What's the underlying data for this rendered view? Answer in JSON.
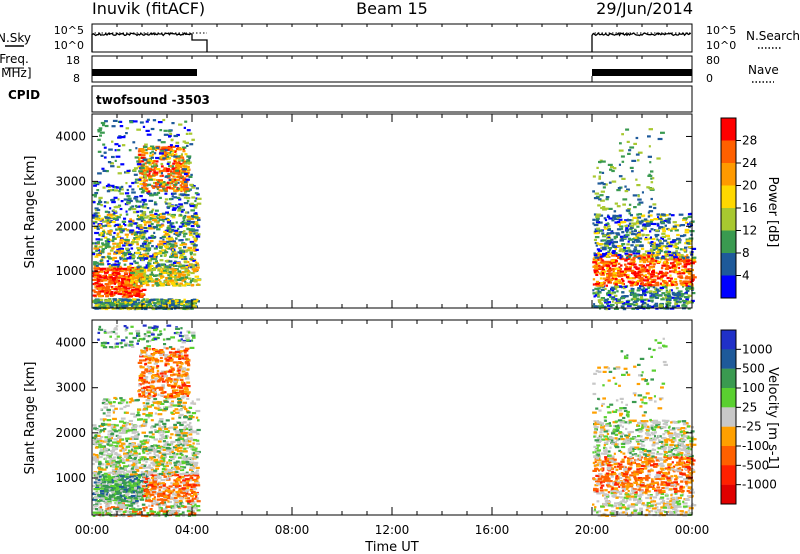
{
  "header": {
    "station": "Inuvik (fitACF)",
    "beam": "Beam 15",
    "date": "29/Jun/2014"
  },
  "panels": {
    "nsky": {
      "label": "N.Sky",
      "right_label": "N.Search",
      "ticks_left": [
        "10^5",
        "10^0"
      ],
      "ticks_right": [
        "10^5",
        "10^0"
      ]
    },
    "freq": {
      "label_line1": "Freq.",
      "label_line2": "[MHz]",
      "right_label": "Nave",
      "ticks_left": [
        "18",
        "8"
      ],
      "ticks_right": [
        "80",
        "0"
      ]
    },
    "cpid": {
      "label": "CPID",
      "value": "twofsound -3503"
    }
  },
  "power_colorbar": {
    "label": "Power [dB]",
    "ticks": [
      "28",
      "24",
      "20",
      "16",
      "12",
      "8",
      "4"
    ],
    "colors": [
      "#ff0000",
      "#ff6000",
      "#ff9a00",
      "#ffd800",
      "#a8c830",
      "#3a9a50",
      "#1e5a9a",
      "#0000ff"
    ]
  },
  "velocity_colorbar": {
    "label": "Velocity [m s-1]",
    "ticks": [
      "1000",
      "500",
      "100",
      "25",
      "-25",
      "-100",
      "-500",
      "-1000"
    ],
    "colors": [
      "#2030c8",
      "#1e5a9a",
      "#3a9a50",
      "#5ad030",
      "#c8c8c8",
      "#ffa000",
      "#ff6000",
      "#ff2000",
      "#e00000"
    ]
  },
  "chart_data": {
    "type": "heatmap",
    "title": "Inuvik (fitACF) Beam 15 29/Jun/2014",
    "xlabel": "Time UT",
    "ylabel": "Slant Range [km]",
    "x_ticks": [
      "00:00",
      "04:00",
      "08:00",
      "12:00",
      "16:00",
      "20:00",
      "00:00"
    ],
    "y_ticks": [
      "1000",
      "2000",
      "3000",
      "4000"
    ],
    "x_range_hours": [
      0,
      24
    ],
    "y_range_km": [
      180,
      4500
    ],
    "data_intervals_hours": [
      [
        0.0,
        4.6
      ],
      [
        20.0,
        24.0
      ]
    ],
    "panels": [
      "Power [dB]",
      "Velocity [m s-1]"
    ]
  }
}
